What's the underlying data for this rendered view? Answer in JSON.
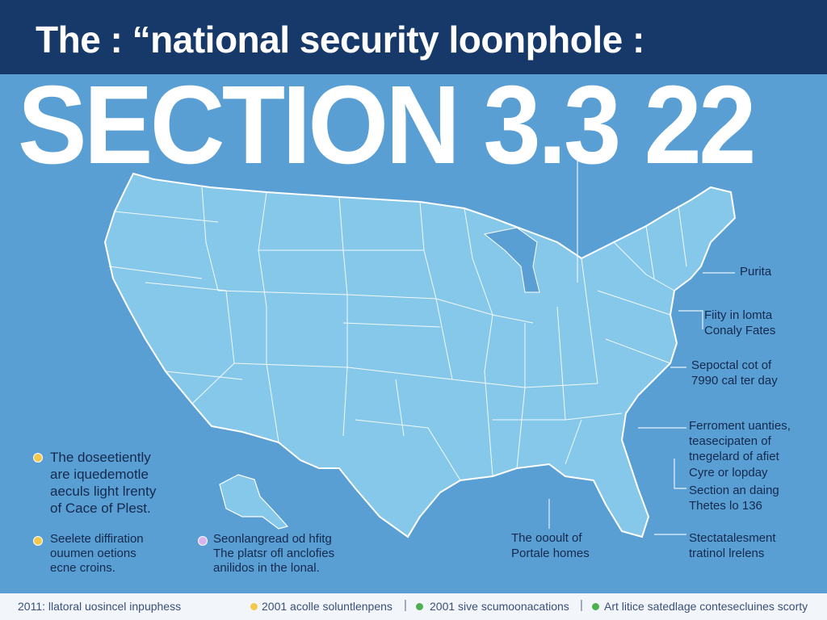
{
  "header": {
    "title": "The : “national security loonphole :"
  },
  "main_title": "SECTION 3.3 22",
  "callouts": [
    {
      "lines": [
        "Purita"
      ]
    },
    {
      "lines": [
        "Fiity in lomta",
        "Conaly Fates"
      ]
    },
    {
      "lines": [
        "Sepoctal cot of",
        "7990 cal ter day"
      ]
    },
    {
      "lines": [
        "Ferroment uanties,",
        "teasecipaten of",
        "tnegelard of afiet"
      ]
    },
    {
      "lines": [
        "Cyre or lopday",
        "Section an daing",
        "Thetes lo 136"
      ]
    },
    {
      "lines": [
        "The oooult of",
        "Portale homes"
      ]
    },
    {
      "lines": [
        "Stectatalesment",
        "tratinol lrelens"
      ]
    }
  ],
  "legend": [
    {
      "lines": [
        "The doseetiently",
        "are iquedemotle",
        "aeculs light lrenty",
        "of Cace of Plest."
      ],
      "color": "#f2c94c"
    },
    {
      "lines": [
        "Seelete diffiration",
        "ouumen oetions",
        "ecne croins."
      ],
      "color": "#f2c94c"
    },
    {
      "lines": [
        "Seonlangread od hfitg",
        "The platsr ofl anclofies",
        "anilidos in the lonal."
      ],
      "color": "#d9b3f0"
    }
  ],
  "footer": [
    {
      "text": "2011: llatoral uosincel inpuphess",
      "icon_color": ""
    },
    {
      "text": "2001 acolle soluntlenpens",
      "icon_color": "#f2c94c"
    },
    {
      "text": "2001 sive scumoonacations",
      "icon_color": "#4caf50"
    },
    {
      "text": "Art litice satedlage contesecluines scorty",
      "icon_color": "#4caf50"
    }
  ],
  "colors": {
    "background": "#5a9fd4",
    "header": "#17396a",
    "land": "#86c8ea",
    "border": "#ffffff"
  }
}
